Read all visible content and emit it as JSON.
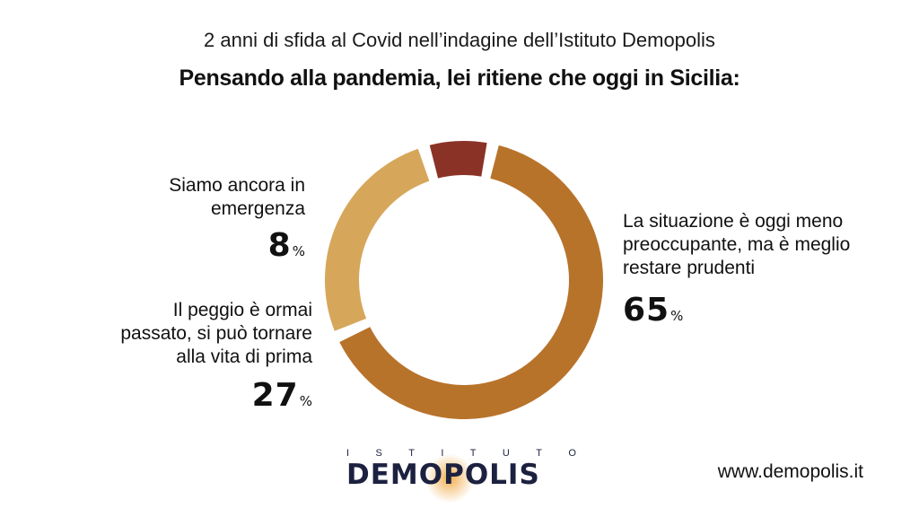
{
  "header": {
    "subtitle": "2 anni di sfida al Covid nell’indagine dell’Istituto Demopolis",
    "title": "Pensando alla pandemia, lei ritiene che oggi in Sicilia:"
  },
  "chart_data": {
    "type": "pie",
    "donut": true,
    "series": [
      {
        "name": "La situazione è oggi meno preoccupante, ma è meglio restare prudenti",
        "label_lines": [
          "La situazione è oggi meno",
          "preoccupante, ma è meglio",
          "restare prudenti"
        ],
        "value": 65,
        "value_label": "65",
        "color": "#b8732b"
      },
      {
        "name": "Il peggio è ormai passato, si può tornare alla vita di prima",
        "label_lines": [
          "Il peggio è ormai",
          "passato, si può tornare",
          "alla vita di prima"
        ],
        "value": 27,
        "value_label": "27",
        "color": "#d6a75a"
      },
      {
        "name": "Siamo ancora in emergenza",
        "label_lines": [
          "Siamo ancora in",
          "emergenza"
        ],
        "value": 8,
        "value_label": "8",
        "color": "#8b3226"
      }
    ],
    "unit": "%"
  },
  "footer": {
    "logo_top_letters": [
      "I",
      "S",
      "T",
      "I",
      "T",
      "U",
      "T",
      "O"
    ],
    "logo_text": "DEMOPOLIS",
    "website": "www.demopolis.it"
  }
}
